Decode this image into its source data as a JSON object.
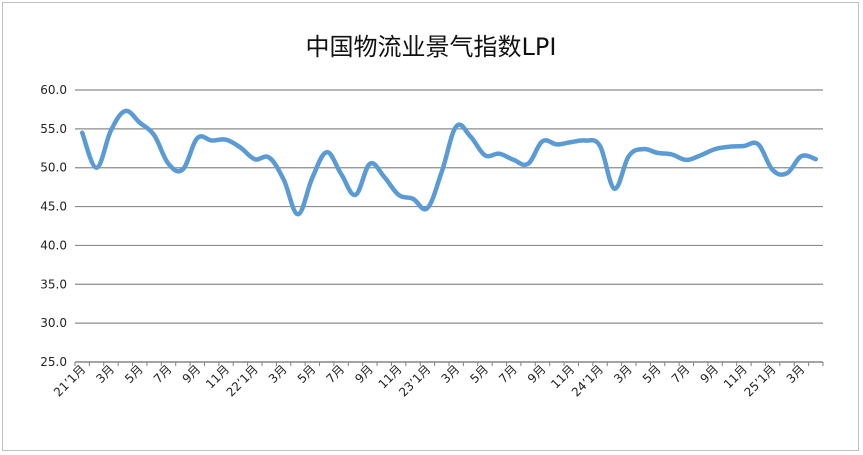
{
  "chart_data": {
    "type": "line",
    "title": "中国物流业景气指数LPI",
    "xlabel": "",
    "ylabel": "",
    "ylim": [
      25.0,
      60.0
    ],
    "yticks": [
      "60.0",
      "55.0",
      "50.0",
      "45.0",
      "40.0",
      "35.0",
      "30.0",
      "25.0"
    ],
    "grid": true,
    "legend": "none",
    "x_tick_labels": [
      "21’1月",
      "3月",
      "5月",
      "7月",
      "9月",
      "11月",
      "22’1月",
      "3月",
      "5月",
      "7月",
      "9月",
      "11月",
      "23’1月",
      "3月",
      "5月",
      "7月",
      "9月",
      "11月",
      "24’1月",
      "3月",
      "5月",
      "7月",
      "9月",
      "11月",
      "25’1月",
      "3月"
    ],
    "series": [
      {
        "color": "#5b9bd5",
        "values": [
          54.5,
          50.0,
          54.8,
          57.3,
          55.8,
          54.2,
          50.5,
          49.8,
          53.8,
          53.5,
          53.6,
          52.6,
          51.1,
          51.3,
          48.5,
          44.0,
          48.7,
          52.0,
          49.2,
          46.5,
          50.5,
          48.8,
          46.5,
          46.0,
          44.8,
          49.5,
          55.3,
          54.0,
          51.6,
          51.8,
          51.0,
          50.5,
          53.4,
          53.0,
          53.3,
          53.5,
          52.8,
          47.3,
          51.5,
          52.4,
          51.9,
          51.7,
          51.0,
          51.6,
          52.4,
          52.7,
          52.8,
          53.0,
          49.7,
          49.3,
          51.5,
          51.1
        ]
      }
    ]
  }
}
